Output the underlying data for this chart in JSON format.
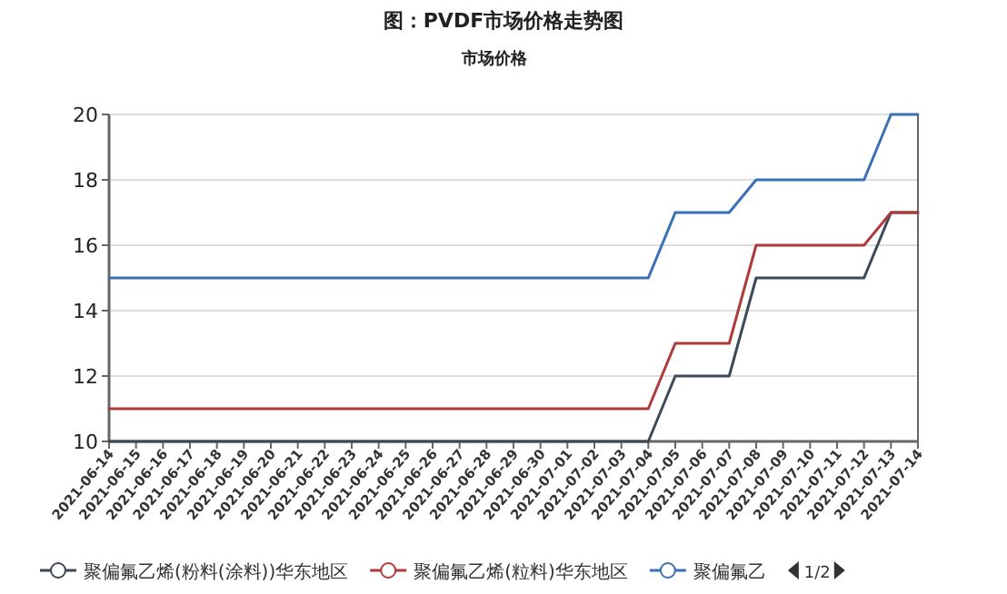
{
  "chart_data": {
    "type": "line",
    "title": "图：PVDF市场价格走势图",
    "subtitle": "市场价格",
    "categories": [
      "2021-06-14",
      "2021-06-15",
      "2021-06-16",
      "2021-06-17",
      "2021-06-18",
      "2021-06-19",
      "2021-06-20",
      "2021-06-21",
      "2021-06-22",
      "2021-06-23",
      "2021-06-24",
      "2021-06-25",
      "2021-06-26",
      "2021-06-27",
      "2021-06-28",
      "2021-06-29",
      "2021-06-30",
      "2021-07-01",
      "2021-07-02",
      "2021-07-03",
      "2021-07-04",
      "2021-07-05",
      "2021-07-06",
      "2021-07-07",
      "2021-07-08",
      "2021-07-09",
      "2021-07-10",
      "2021-07-11",
      "2021-07-12",
      "2021-07-13",
      "2021-07-14"
    ],
    "series": [
      {
        "name": "聚偏氟乙烯(粉料(涂料))华东地区",
        "color": "#3d4a55",
        "values": [
          10,
          10,
          10,
          10,
          10,
          10,
          10,
          10,
          10,
          10,
          10,
          10,
          10,
          10,
          10,
          10,
          10,
          10,
          10,
          10,
          10,
          12,
          12,
          12,
          15,
          15,
          15,
          15,
          15,
          17,
          17
        ]
      },
      {
        "name": "聚偏氟乙烯(粒料)华东地区",
        "color": "#b03a3a",
        "values": [
          11,
          11,
          11,
          11,
          11,
          11,
          11,
          11,
          11,
          11,
          11,
          11,
          11,
          11,
          11,
          11,
          11,
          11,
          11,
          11,
          11,
          13,
          13,
          13,
          16,
          16,
          16,
          16,
          16,
          17,
          17
        ]
      },
      {
        "name": "聚偏氟乙",
        "color": "#3a70b5",
        "values": [
          15,
          15,
          15,
          15,
          15,
          15,
          15,
          15,
          15,
          15,
          15,
          15,
          15,
          15,
          15,
          15,
          15,
          15,
          15,
          15,
          15,
          17,
          17,
          17,
          18,
          18,
          18,
          18,
          18,
          20,
          20
        ]
      }
    ],
    "ylim": [
      10,
      20
    ],
    "yticks": [
      10,
      12,
      14,
      16,
      18,
      20
    ],
    "grid": "y",
    "legend": "bottom",
    "marker": "none",
    "line_style": "solid",
    "annotations": [
      "1/2"
    ]
  }
}
